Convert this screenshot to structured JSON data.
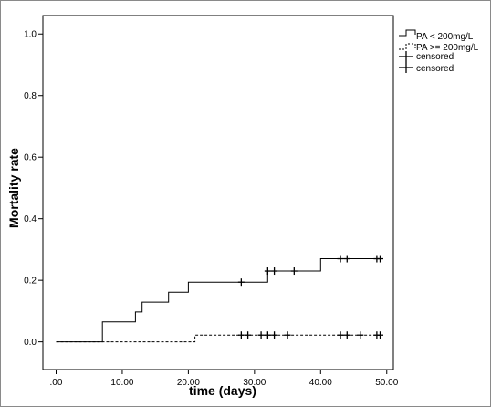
{
  "chart_data": {
    "type": "line",
    "chart_style": "step",
    "xlabel": "time (days)",
    "ylabel": "Mortality rate",
    "xlim": [
      -2,
      51
    ],
    "ylim": [
      -0.09,
      1.06
    ],
    "xticks": [
      ".00",
      "10.00",
      "20.00",
      "30.00",
      "40.00",
      "50.00"
    ],
    "xtick_values": [
      0,
      10,
      20,
      30,
      40,
      50
    ],
    "yticks": [
      "0.0",
      "0.2",
      "0.4",
      "0.6",
      "0.8",
      "1.0"
    ],
    "ytick_values": [
      0,
      0.2,
      0.4,
      0.6,
      0.8,
      1.0
    ],
    "grid": false,
    "legend_position": "right",
    "series": [
      {
        "name": "PA < 200mg/L",
        "color": "#000000",
        "dash": "solid",
        "points": [
          [
            0,
            0
          ],
          [
            7,
            0
          ],
          [
            7,
            0.065
          ],
          [
            12,
            0.065
          ],
          [
            12,
            0.097
          ],
          [
            13,
            0.097
          ],
          [
            13,
            0.129
          ],
          [
            17,
            0.129
          ],
          [
            17,
            0.161
          ],
          [
            20,
            0.161
          ],
          [
            20,
            0.194
          ],
          [
            31,
            0.194
          ],
          [
            31,
            0.194
          ],
          [
            32,
            0.194
          ],
          [
            32,
            0.23
          ],
          [
            40,
            0.23
          ],
          [
            40,
            0.27
          ],
          [
            49,
            0.27
          ]
        ],
        "censored": [
          [
            28,
            0.194
          ],
          [
            32,
            0.23
          ],
          [
            33,
            0.23
          ],
          [
            36,
            0.23
          ],
          [
            43,
            0.27
          ],
          [
            44,
            0.27
          ],
          [
            48.5,
            0.27
          ],
          [
            49,
            0.27
          ]
        ]
      },
      {
        "name": "PA >= 200mg/L",
        "color": "#000000",
        "dash": "dashed",
        "points": [
          [
            0,
            0
          ],
          [
            21,
            0
          ],
          [
            21,
            0.022
          ],
          [
            49,
            0.022
          ]
        ],
        "censored": [
          [
            28,
            0.022
          ],
          [
            29,
            0.022
          ],
          [
            31,
            0.022
          ],
          [
            32,
            0.022
          ],
          [
            33,
            0.022
          ],
          [
            35,
            0.022
          ],
          [
            43,
            0.022
          ],
          [
            44,
            0.022
          ],
          [
            46,
            0.022
          ],
          [
            48.5,
            0.022
          ],
          [
            49,
            0.022
          ]
        ]
      }
    ],
    "legend": [
      {
        "label": "PA < 200mg/L",
        "symbol": "step-solid"
      },
      {
        "label": "PA >= 200mg/L",
        "symbol": "step-dashed"
      },
      {
        "label": "censored",
        "symbol": "plus"
      },
      {
        "label": "censored",
        "symbol": "plus"
      }
    ]
  }
}
